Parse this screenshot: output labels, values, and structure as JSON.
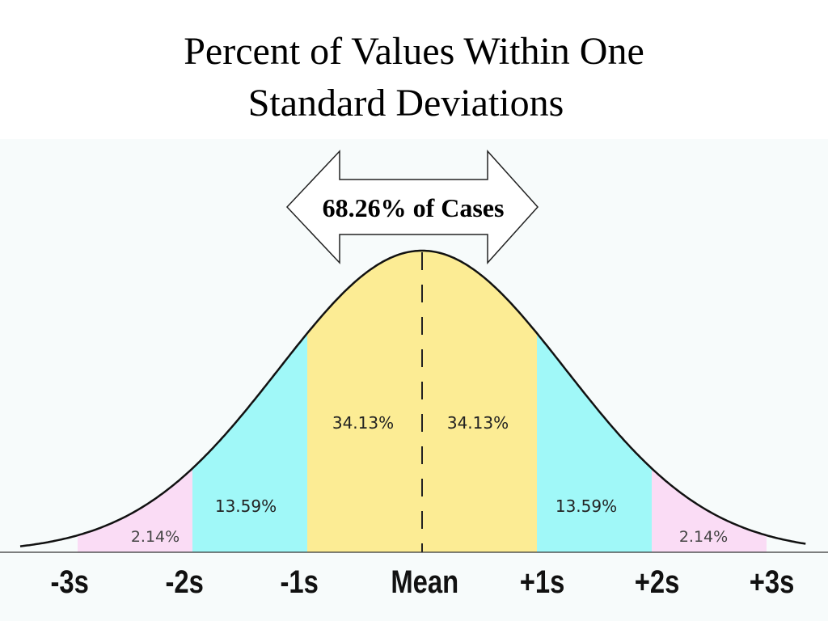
{
  "title_line1": "Percent of Values Within One",
  "title_line2": "Standard Deviations",
  "arrow_label": "68.26% of Cases",
  "chart_data": {
    "type": "area",
    "title": "Percent of Values Within One Standard Deviations",
    "x_ticks": [
      "-3s",
      "-2s",
      "-1s",
      "Mean",
      "+1s",
      "+2s",
      "+3s"
    ],
    "regions": [
      {
        "from": -3,
        "to": -2,
        "label": "2.14%",
        "value": 2.14,
        "color": "#fadcf5"
      },
      {
        "from": -2,
        "to": -1,
        "label": "13.59%",
        "value": 13.59,
        "color": "#a0f8f8"
      },
      {
        "from": -1,
        "to": 0,
        "label": "34.13%",
        "value": 34.13,
        "color": "#fcec94"
      },
      {
        "from": 0,
        "to": 1,
        "label": "34.13%",
        "value": 34.13,
        "color": "#fcec94"
      },
      {
        "from": 1,
        "to": 2,
        "label": "13.59%",
        "value": 13.59,
        "color": "#a0f8f8"
      },
      {
        "from": 2,
        "to": 3,
        "label": "2.14%",
        "value": 2.14,
        "color": "#fadcf5"
      }
    ],
    "xlim": [
      -3.5,
      3.35
    ],
    "annotation": "68.26% of Cases"
  }
}
